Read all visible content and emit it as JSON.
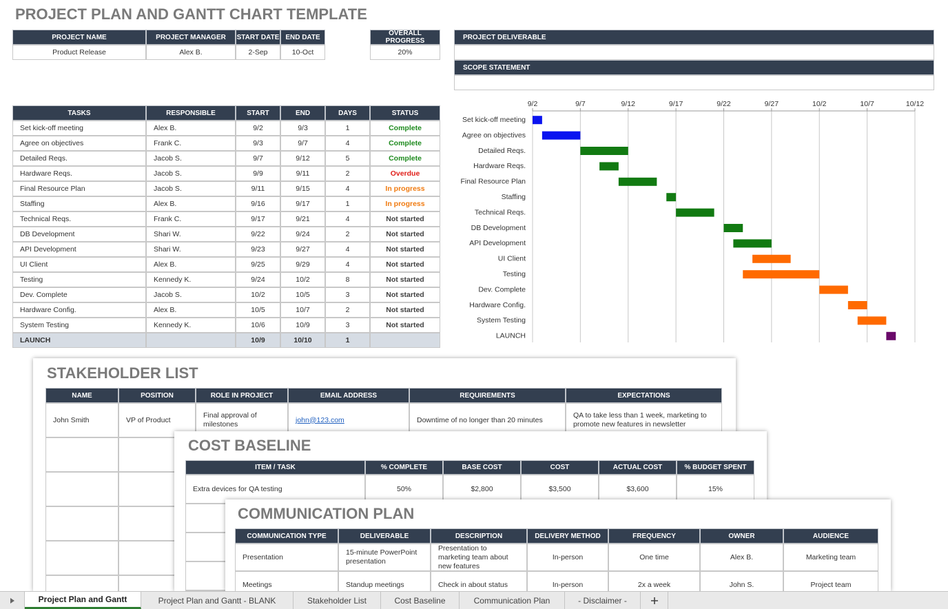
{
  "title": "PROJECT PLAN AND GANTT CHART TEMPLATE",
  "project": {
    "headers": [
      "PROJECT NAME",
      "PROJECT MANAGER",
      "START DATE",
      "END DATE"
    ],
    "rows": [
      [
        "Product Release",
        "Alex B.",
        "2-Sep",
        "10-Oct"
      ]
    ]
  },
  "progress": {
    "headers": [
      "OVERALL PROGRESS"
    ],
    "rows": [
      [
        "20%"
      ]
    ]
  },
  "deliverable": {
    "headers": [
      "PROJECT DELIVERABLE"
    ]
  },
  "scope": {
    "headers": [
      "SCOPE STATEMENT"
    ]
  },
  "tasks": {
    "headers": [
      "TASKS",
      "RESPONSIBLE",
      "START",
      "END",
      "DAYS",
      "STATUS"
    ],
    "rows": [
      [
        "Set kick-off meeting",
        "Alex B.",
        "9/2",
        "9/3",
        "1",
        "Complete"
      ],
      [
        "Agree on objectives",
        "Frank C.",
        "9/3",
        "9/7",
        "4",
        "Complete"
      ],
      [
        "Detailed Reqs.",
        "Jacob S.",
        "9/7",
        "9/12",
        "5",
        "Complete"
      ],
      [
        "Hardware Reqs.",
        "Jacob S.",
        "9/9",
        "9/11",
        "2",
        "Overdue"
      ],
      [
        "Final Resource Plan",
        "Jacob S.",
        "9/11",
        "9/15",
        "4",
        "In progress"
      ],
      [
        "Staffing",
        "Alex B.",
        "9/16",
        "9/17",
        "1",
        "In progress"
      ],
      [
        "Technical Reqs.",
        "Frank C.",
        "9/17",
        "9/21",
        "4",
        "Not started"
      ],
      [
        "DB Development",
        "Shari W.",
        "9/22",
        "9/24",
        "2",
        "Not started"
      ],
      [
        "API Development",
        "Shari W.",
        "9/23",
        "9/27",
        "4",
        "Not started"
      ],
      [
        "UI Client",
        "Alex B.",
        "9/25",
        "9/29",
        "4",
        "Not started"
      ],
      [
        "Testing",
        "Kennedy K.",
        "9/24",
        "10/2",
        "8",
        "Not started"
      ],
      [
        "Dev. Complete",
        "Jacob S.",
        "10/2",
        "10/5",
        "3",
        "Not started"
      ],
      [
        "Hardware Config.",
        "Alex B.",
        "10/5",
        "10/7",
        "2",
        "Not started"
      ],
      [
        "System Testing",
        "Kennedy K.",
        "10/6",
        "10/9",
        "3",
        "Not started"
      ],
      [
        "LAUNCH",
        null,
        "10/9",
        "10/10",
        "1",
        null
      ]
    ],
    "status_colors": [
      "#1e8a1e",
      "#1e8a1e",
      "#1e8a1e",
      "#e0201b",
      "#f07a0f",
      "#f07a0f",
      "#404040",
      "#404040",
      "#404040",
      "#404040",
      "#404040",
      "#404040",
      "#404040",
      "#404040",
      "#404040"
    ]
  },
  "gantt": {
    "xlim": [
      0,
      40
    ],
    "xticks": [
      {
        "value": 0,
        "label": "9/2"
      },
      {
        "value": 5,
        "label": "9/7"
      },
      {
        "value": 10,
        "label": "9/12"
      },
      {
        "value": 15,
        "label": "9/17"
      },
      {
        "value": 20,
        "label": "9/22"
      },
      {
        "value": 25,
        "label": "9/27"
      },
      {
        "value": 30,
        "label": "10/2"
      },
      {
        "value": 35,
        "label": "10/7"
      },
      {
        "value": 40,
        "label": "10/12"
      }
    ],
    "tasks": [
      "Set kick-off meeting",
      "Agree on objectives",
      "Detailed Reqs.",
      "Hardware Reqs.",
      "Final Resource Plan",
      "Staffing",
      "Technical Reqs.",
      "DB Development",
      "API Development",
      "UI Client",
      "Testing",
      "Dev. Complete",
      "Hardware Config.",
      "System Testing",
      "LAUNCH"
    ],
    "start": [
      0,
      1,
      5,
      7,
      9,
      14,
      15,
      20,
      21,
      23,
      22,
      30,
      33,
      34,
      37
    ],
    "days": [
      1,
      4,
      5,
      2,
      4,
      1,
      4,
      2,
      4,
      4,
      8,
      3,
      2,
      3,
      1
    ],
    "colors": [
      "#0a14f0",
      "#0a14f0",
      "#127a12",
      "#127a12",
      "#127a12",
      "#127a12",
      "#127a12",
      "#127a12",
      "#127a12",
      "#ff6a00",
      "#ff6a00",
      "#ff6a00",
      "#ff6a00",
      "#ff6a00",
      "#6a0a6a"
    ]
  },
  "stakeholders": {
    "title": "STAKEHOLDER LIST",
    "headers": [
      "NAME",
      "POSITION",
      "ROLE IN PROJECT",
      "EMAIL ADDRESS",
      "REQUIREMENTS",
      "EXPECTATIONS"
    ],
    "rows": [
      [
        "John Smith",
        "VP of Product",
        "Final approval of milestones",
        "john@123.com",
        "Downtime of no longer than 20 minutes",
        "QA to take less than 1 week, marketing to promote new features in newsletter"
      ]
    ]
  },
  "cost": {
    "title": "COST BASELINE",
    "headers": [
      "ITEM / TASK",
      "% COMPLETE",
      "BASE COST",
      "COST",
      "ACTUAL COST",
      "% BUDGET SPENT"
    ],
    "rows": [
      [
        "Extra devices for QA testing",
        "50%",
        "$2,800",
        "$3,500",
        "$3,600",
        "15%"
      ]
    ]
  },
  "communication": {
    "title": "COMMUNICATION PLAN",
    "headers": [
      "COMMUNICATION TYPE",
      "DELIVERABLE",
      "DESCRIPTION",
      "DELIVERY METHOD",
      "FREQUENCY",
      "OWNER",
      "AUDIENCE"
    ],
    "rows": [
      [
        "Presentation",
        "15-minute PowerPoint presentation",
        "Presentation to marketing team about new features",
        "In-person",
        "One time",
        "Alex B.",
        "Marketing team"
      ],
      [
        "Meetings",
        "Standup meetings",
        "Check in about status",
        "In-person",
        "2x a week",
        "John S.",
        "Project team"
      ]
    ]
  },
  "tabs": [
    "Project Plan and Gantt",
    "Project Plan and Gantt - BLANK",
    "Stakeholder List",
    "Cost Baseline",
    "Communication Plan",
    "- Disclaimer -"
  ]
}
